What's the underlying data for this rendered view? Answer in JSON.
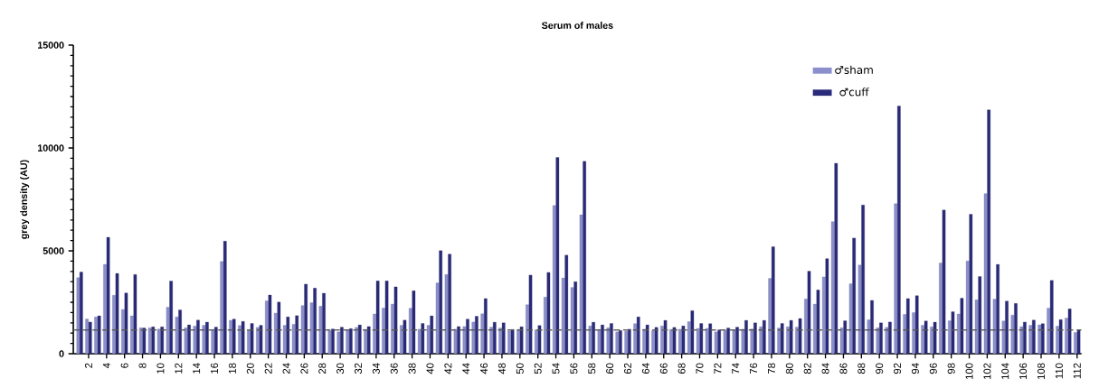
{
  "chart_data": {
    "type": "bar",
    "title": "Serum of males",
    "ylabel": "grey density (AU)",
    "categories": [
      null,
      "2",
      null,
      "4",
      null,
      "6",
      null,
      "8",
      null,
      "10",
      null,
      "12",
      null,
      "14",
      null,
      "16",
      null,
      "18",
      null,
      "20",
      null,
      "22",
      null,
      "24",
      null,
      "26",
      null,
      "28",
      null,
      "30",
      null,
      "32",
      null,
      "34",
      null,
      "36",
      null,
      "38",
      null,
      "40",
      null,
      "42",
      null,
      "44",
      null,
      "46",
      null,
      "48",
      null,
      "50",
      null,
      "52",
      null,
      "54",
      null,
      "56",
      null,
      "58",
      null,
      "60",
      null,
      "62",
      null,
      "64",
      null,
      "66",
      null,
      "68",
      null,
      "70",
      null,
      "72",
      null,
      "74",
      null,
      "76",
      null,
      "78",
      null,
      "80",
      null,
      "82",
      null,
      "84",
      null,
      "86",
      null,
      "88",
      null,
      "90",
      null,
      "92",
      null,
      "94",
      null,
      "96",
      null,
      "98",
      null,
      "100",
      null,
      "102",
      null,
      "104",
      null,
      "106",
      null,
      "108",
      null,
      "110",
      null,
      "112"
    ],
    "series": [
      {
        "name": "♂sham",
        "color": "#8b8fcc",
        "values": [
          3700,
          1690,
          1790,
          4340,
          2840,
          2150,
          1840,
          1260,
          1260,
          1200,
          2260,
          1790,
          1260,
          1340,
          1380,
          1130,
          4480,
          1620,
          1370,
          1130,
          1280,
          2570,
          1970,
          1380,
          1430,
          2340,
          2480,
          2310,
          1130,
          1060,
          1160,
          1280,
          1180,
          1930,
          2220,
          2410,
          1380,
          2210,
          1190,
          1380,
          3440,
          3850,
          1190,
          1320,
          1540,
          1940,
          1290,
          1250,
          1100,
          1180,
          2380,
          1160,
          2750,
          7200,
          3680,
          3220,
          6750,
          1350,
          1180,
          1260,
          1060,
          1090,
          1460,
          1190,
          1120,
          1350,
          1180,
          1190,
          1560,
          1230,
          1230,
          1060,
          1120,
          1160,
          1190,
          1200,
          1310,
          3660,
          1250,
          1310,
          1290,
          2660,
          2410,
          3730,
          6420,
          1260,
          3400,
          4310,
          1650,
          1260,
          1280,
          7290,
          1910,
          2000,
          1380,
          1310,
          4410,
          1600,
          1930,
          4510,
          2620,
          7790,
          2650,
          1590,
          1880,
          1320,
          1380,
          1400,
          2220,
          1340,
          1730,
          1030
        ]
      },
      {
        "name": "♂cuff",
        "color": "#2a2a7a",
        "values": [
          3970,
          1540,
          1840,
          5660,
          3900,
          2950,
          3850,
          1250,
          1310,
          1310,
          3530,
          2130,
          1400,
          1630,
          1530,
          1290,
          5470,
          1680,
          1570,
          1470,
          1380,
          2850,
          2510,
          1790,
          1850,
          3380,
          3190,
          2940,
          1200,
          1290,
          1220,
          1400,
          1320,
          3540,
          3540,
          3250,
          1630,
          3060,
          1470,
          1840,
          5010,
          4840,
          1320,
          1680,
          1820,
          2680,
          1530,
          1500,
          1180,
          1310,
          3820,
          1370,
          3950,
          9540,
          4790,
          3500,
          9350,
          1530,
          1400,
          1470,
          1130,
          1190,
          1790,
          1400,
          1280,
          1620,
          1280,
          1350,
          2090,
          1470,
          1460,
          1160,
          1250,
          1290,
          1620,
          1500,
          1620,
          5200,
          1470,
          1620,
          1710,
          4010,
          3100,
          4620,
          9260,
          1600,
          5620,
          7230,
          2590,
          1500,
          1540,
          12040,
          2680,
          2820,
          1590,
          1530,
          6980,
          2040,
          2700,
          6780,
          3750,
          11850,
          4340,
          2560,
          2440,
          1540,
          1630,
          1460,
          3560,
          1660,
          2180,
          1150
        ]
      }
    ],
    "ylim": [
      0,
      15000
    ],
    "yticks": [
      0,
      5000,
      10000,
      15000
    ],
    "ref_lines": [
      {
        "axis": "y",
        "value": 1150,
        "color": "#555555",
        "line_style": "dashed"
      }
    ],
    "legend": "top right"
  }
}
